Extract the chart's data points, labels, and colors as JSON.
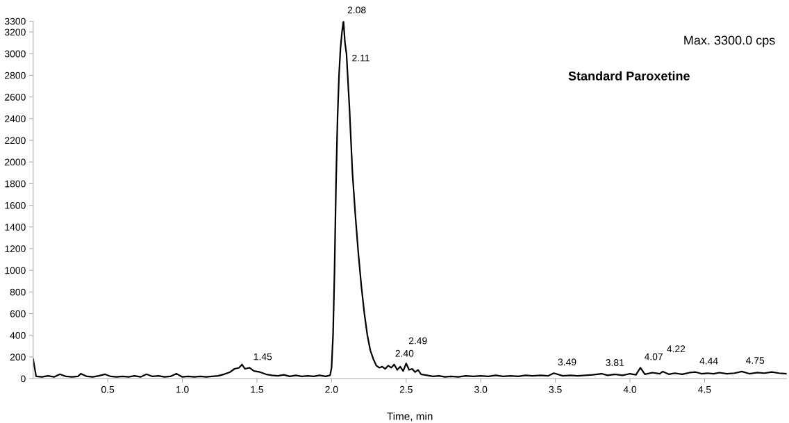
{
  "chart_data": {
    "type": "line",
    "xlabel": "Time, min",
    "annotations": [
      "Max. 3300.0 cps",
      "Standard Paroxetine",
      {
        "text": "2.08",
        "x": 2.08,
        "y": 3300
      },
      {
        "text": "2.11",
        "x": 2.11,
        "y": 2750
      },
      {
        "text": "1.45",
        "x": 1.45,
        "y": 100
      },
      {
        "text": "2.40",
        "x": 2.4,
        "y": 130
      },
      {
        "text": "2.49",
        "x": 2.49,
        "y": 140
      },
      {
        "text": "3.49",
        "x": 3.49,
        "y": 50
      },
      {
        "text": "3.81",
        "x": 3.81,
        "y": 45
      },
      {
        "text": "4.07",
        "x": 4.07,
        "y": 100
      },
      {
        "text": "4.22",
        "x": 4.22,
        "y": 65
      },
      {
        "text": "4.44",
        "x": 4.44,
        "y": 60
      },
      {
        "text": "4.75",
        "x": 4.75,
        "y": 65
      }
    ],
    "x": [
      0.0,
      0.02,
      0.06,
      0.1,
      0.14,
      0.18,
      0.22,
      0.26,
      0.3,
      0.32,
      0.36,
      0.4,
      0.44,
      0.48,
      0.52,
      0.56,
      0.6,
      0.64,
      0.68,
      0.72,
      0.76,
      0.8,
      0.84,
      0.88,
      0.92,
      0.96,
      1.0,
      1.04,
      1.08,
      1.12,
      1.16,
      1.2,
      1.24,
      1.28,
      1.32,
      1.35,
      1.38,
      1.4,
      1.42,
      1.45,
      1.48,
      1.52,
      1.56,
      1.6,
      1.64,
      1.68,
      1.72,
      1.76,
      1.8,
      1.84,
      1.88,
      1.92,
      1.96,
      1.99,
      2.0,
      2.01,
      2.02,
      2.03,
      2.04,
      2.05,
      2.06,
      2.07,
      2.08,
      2.09,
      2.1,
      2.11,
      2.12,
      2.13,
      2.14,
      2.16,
      2.18,
      2.2,
      2.22,
      2.24,
      2.26,
      2.28,
      2.3,
      2.32,
      2.34,
      2.36,
      2.38,
      2.4,
      2.42,
      2.44,
      2.46,
      2.48,
      2.5,
      2.52,
      2.54,
      2.56,
      2.58,
      2.6,
      2.64,
      2.68,
      2.72,
      2.76,
      2.8,
      2.85,
      2.9,
      2.95,
      3.0,
      3.05,
      3.1,
      3.15,
      3.2,
      3.25,
      3.3,
      3.35,
      3.4,
      3.45,
      3.49,
      3.55,
      3.6,
      3.65,
      3.7,
      3.75,
      3.81,
      3.85,
      3.9,
      3.95,
      4.0,
      4.04,
      4.07,
      4.1,
      4.15,
      4.2,
      4.22,
      4.26,
      4.3,
      4.35,
      4.4,
      4.44,
      4.48,
      4.52,
      4.56,
      4.6,
      4.65,
      4.7,
      4.75,
      4.8,
      4.85,
      4.9,
      4.95,
      5.0,
      5.05
    ],
    "series": [
      {
        "color": "#000000",
        "values": [
          180,
          20,
          15,
          25,
          15,
          40,
          20,
          15,
          20,
          45,
          20,
          15,
          25,
          40,
          20,
          15,
          20,
          15,
          25,
          15,
          40,
          20,
          25,
          15,
          20,
          45,
          15,
          20,
          15,
          20,
          15,
          20,
          25,
          40,
          60,
          90,
          100,
          130,
          90,
          100,
          70,
          60,
          40,
          30,
          25,
          35,
          20,
          30,
          20,
          25,
          20,
          30,
          20,
          30,
          100,
          400,
          1000,
          1800,
          2400,
          2800,
          3050,
          3200,
          3300,
          3100,
          3000,
          2750,
          2500,
          2200,
          1900,
          1500,
          1150,
          850,
          600,
          400,
          260,
          180,
          120,
          100,
          110,
          90,
          120,
          100,
          130,
          80,
          110,
          70,
          140,
          80,
          90,
          60,
          80,
          40,
          30,
          20,
          25,
          15,
          20,
          15,
          25,
          20,
          25,
          20,
          30,
          20,
          25,
          20,
          30,
          25,
          30,
          25,
          50,
          25,
          30,
          25,
          30,
          35,
          45,
          30,
          40,
          30,
          45,
          35,
          100,
          40,
          55,
          45,
          65,
          40,
          50,
          40,
          55,
          60,
          45,
          50,
          45,
          55,
          45,
          50,
          65,
          45,
          55,
          50,
          60,
          50,
          45
        ]
      }
    ],
    "xlim": [
      0,
      5.05
    ],
    "xticks": [
      0.5,
      {
        "value": 1,
        "label": "1.0"
      },
      1.5,
      {
        "value": 2,
        "label": "2.0"
      },
      2.5,
      {
        "value": 3,
        "label": "3.0"
      },
      3.5,
      {
        "value": 4,
        "label": "4.0"
      },
      4.5
    ],
    "ylim": [
      0,
      3300
    ],
    "yticks": [
      0,
      200,
      400,
      600,
      800,
      1000,
      1200,
      1400,
      1600,
      1800,
      2000,
      2200,
      2400,
      2600,
      2800,
      3000,
      3200,
      3300
    ],
    "grid": false,
    "legend": false,
    "marker": "none",
    "line_style": "solid"
  }
}
